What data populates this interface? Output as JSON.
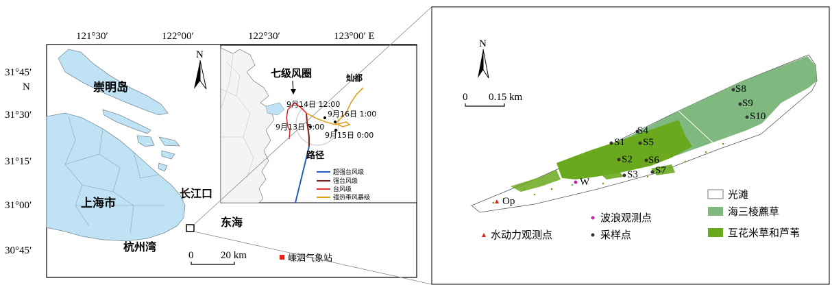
{
  "axis": {
    "lon_ticks": [
      "121°30′",
      "122°00′",
      "122°30′",
      "123°00′ E"
    ],
    "lat_ticks": [
      "31°45′",
      "N",
      "31°30′",
      "31°15′",
      "31°00′",
      "30°45′"
    ]
  },
  "main_map": {
    "places": {
      "chongming": "崇明岛",
      "shanghai": "上海市",
      "changjiangkou": "长江口",
      "hangzhouwan": "杭州湾",
      "donghai": "东海"
    },
    "north": "N",
    "scale": {
      "zero": "0",
      "dist": "20 km"
    },
    "station_legend": "嵊泗气象站",
    "station_color": "#e2231a",
    "land_color": "#bfe3f5"
  },
  "inset": {
    "wind_circle_label": "七级风圈",
    "typhoon_name": "灿都",
    "path_label": "路径",
    "times": [
      "9月14日 12:00",
      "9月16日 1:00",
      "9月13日 5:00",
      "9月15日 0:00"
    ],
    "legend": [
      {
        "label": "超强台风级",
        "color": "#1f5fbf"
      },
      {
        "label": "强台风级",
        "color": "#8b1a1a"
      },
      {
        "label": "台风级",
        "color": "#e03030"
      },
      {
        "label": "强热带风暴级",
        "color": "#e0a020"
      }
    ]
  },
  "detail_map": {
    "north": "N",
    "scale": {
      "zero": "0",
      "dist": "0.15 km"
    },
    "sample_points": [
      "S1",
      "S2",
      "S3",
      "S4",
      "S5",
      "S6",
      "S7",
      "S8",
      "S9",
      "S10"
    ],
    "wave_point": "W",
    "hydro_point": "Op",
    "legend": {
      "tidal_flat": "光滩",
      "scirpus": "海三棱藨草",
      "spartina": "互花米草和芦苇",
      "wave_obs": "波浪观测点",
      "hydro_obs": "水动力观测点",
      "sampling": "采样点"
    },
    "colors": {
      "scirpus": "#7fb97f",
      "spartina": "#6aa81e",
      "wave": "#cc22aa",
      "hydro": "#e2231a",
      "sample": "#333333"
    }
  }
}
